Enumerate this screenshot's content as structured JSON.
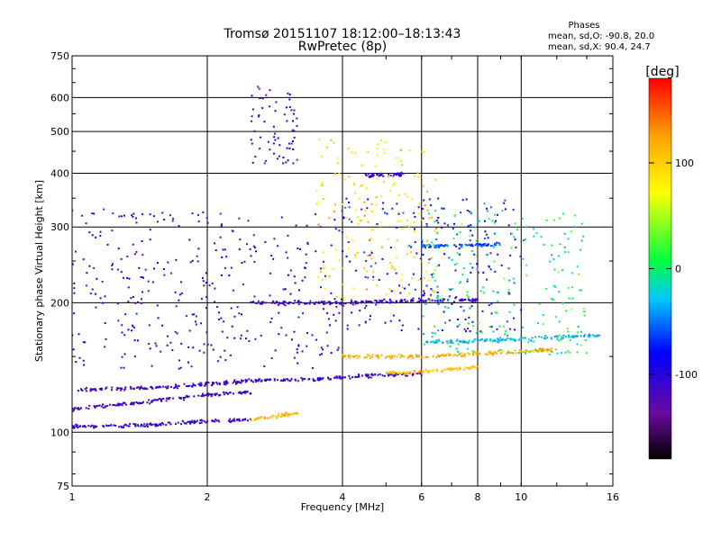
{
  "chart_data": {
    "type": "scatter",
    "title": "Tromsø 20151107 18:12:00–18:13:43",
    "subtitle": "RwPretec (8p)",
    "xlabel": "Frequency [MHz]",
    "ylabel": "Stationary phase Virtual Height [km]",
    "x_scale": "log",
    "y_scale": "log",
    "xlim": [
      1,
      16
    ],
    "ylim": [
      75,
      750
    ],
    "x_ticks": [
      1,
      2,
      4,
      6,
      8,
      10,
      16
    ],
    "x_tick_labels": [
      "1",
      "2",
      "4",
      "6",
      "8",
      "10",
      "16"
    ],
    "y_ticks": [
      75,
      100,
      200,
      300,
      400,
      500,
      600,
      750
    ],
    "y_tick_labels": [
      "75",
      "100",
      "200",
      "300",
      "400",
      "500",
      "600",
      "750"
    ],
    "grid": true,
    "colorbar": {
      "label": "[deg]",
      "range": [
        -180,
        180
      ],
      "ticks": [
        -100,
        0,
        100
      ],
      "tick_labels": [
        "-100",
        "0",
        "100"
      ],
      "colormap": "rainbow (black-purple-blue-cyan-green-yellow-orange-red)"
    },
    "phase_stats": {
      "heading": "Phases",
      "line1": "mean, sd,O: -90.8, 20.0",
      "line2": "mean, sd,X: 90.4, 24.7"
    },
    "traces": [
      {
        "x": [
          1.0,
          1.5,
          2.0,
          2.5
        ],
        "y": [
          103,
          104,
          106,
          107
        ],
        "phase_deg": -110
      },
      {
        "x": [
          2.5,
          2.8,
          3.2
        ],
        "y": [
          107,
          109,
          111
        ],
        "phase_deg": 110
      },
      {
        "x": [
          1.0,
          1.5,
          2.0,
          2.5
        ],
        "y": [
          113,
          118,
          122,
          124
        ],
        "phase_deg": -110
      },
      {
        "x": [
          1.0,
          1.8,
          2.5
        ],
        "y": [
          125,
          128,
          132
        ],
        "phase_deg": -115
      },
      {
        "x": [
          2.5,
          3.5,
          5.0,
          6.0
        ],
        "y": [
          132,
          133,
          136,
          137
        ],
        "phase_deg": -110
      },
      {
        "x": [
          5.0,
          6.0,
          7.0,
          8.0
        ],
        "y": [
          137,
          138,
          140,
          142
        ],
        "phase_deg": 110
      },
      {
        "x": [
          4.0,
          6.0,
          8.0,
          10.0,
          12.0
        ],
        "y": [
          150,
          150,
          152,
          154,
          156
        ],
        "phase_deg": 120
      },
      {
        "x": [
          6.0,
          8.0,
          10.0,
          15.0
        ],
        "y": [
          162,
          163,
          165,
          168
        ],
        "phase_deg": -30
      },
      {
        "x": [
          2.5,
          4.0,
          6.0,
          8.0
        ],
        "y": [
          200,
          200,
          202,
          203
        ],
        "phase_deg": -110
      },
      {
        "x": [
          6.0,
          8.0,
          9.0
        ],
        "y": [
          270,
          272,
          274
        ],
        "phase_deg": -60
      },
      {
        "x": [
          4.5,
          5.0,
          5.5
        ],
        "y": [
          395,
          397,
          398
        ],
        "phase_deg": -110
      }
    ],
    "clusters": [
      {
        "x_range": [
          1.0,
          4.0
        ],
        "y_range": [
          140,
          330
        ],
        "phase_deg": -110
      },
      {
        "x_range": [
          2.5,
          3.2
        ],
        "y_range": [
          420,
          640
        ],
        "phase_deg": -110
      },
      {
        "x_range": [
          3.5,
          6.5
        ],
        "y_range": [
          200,
          480
        ],
        "phase_deg": 90
      },
      {
        "x_range": [
          4.0,
          10.0
        ],
        "y_range": [
          170,
          350
        ],
        "phase_deg": -90
      },
      {
        "x_range": [
          6.0,
          14.0
        ],
        "y_range": [
          150,
          330
        ],
        "phase_deg": 0
      }
    ]
  }
}
